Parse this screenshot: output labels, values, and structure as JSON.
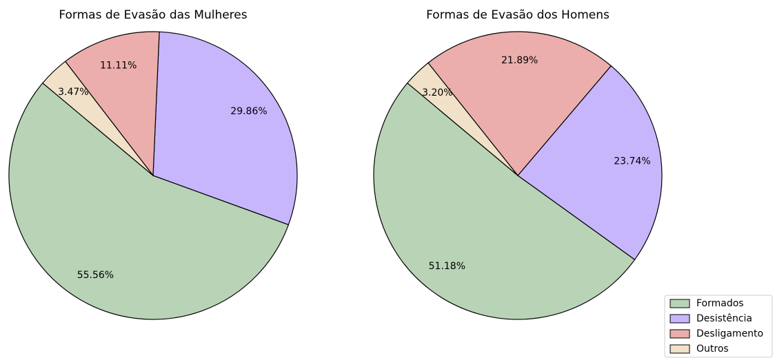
{
  "chart_data": [
    {
      "type": "pie",
      "title": "Formas de Evasão das Mulheres",
      "values": [
        55.56,
        29.86,
        11.11,
        3.47
      ],
      "value_labels": [
        "55.56%",
        "29.86%",
        "11.11%",
        "3.47%"
      ],
      "colors": [
        "#b9d3b6",
        "#c8b6fd",
        "#ebaeac",
        "#f1e1c8"
      ]
    },
    {
      "type": "pie",
      "title": "Formas de Evasão dos Homens",
      "categories": [
        "Formados",
        "Desistência",
        "Desligamento",
        "Outros"
      ],
      "values": [
        51.18,
        23.74,
        21.89,
        3.2
      ],
      "value_labels": [
        "51.18%",
        "23.74%",
        "21.89%",
        "3.20%"
      ],
      "colors": [
        "#b9d3b6",
        "#c8b6fd",
        "#ebaeac",
        "#f1e1c8"
      ],
      "legend": "lower right"
    }
  ]
}
